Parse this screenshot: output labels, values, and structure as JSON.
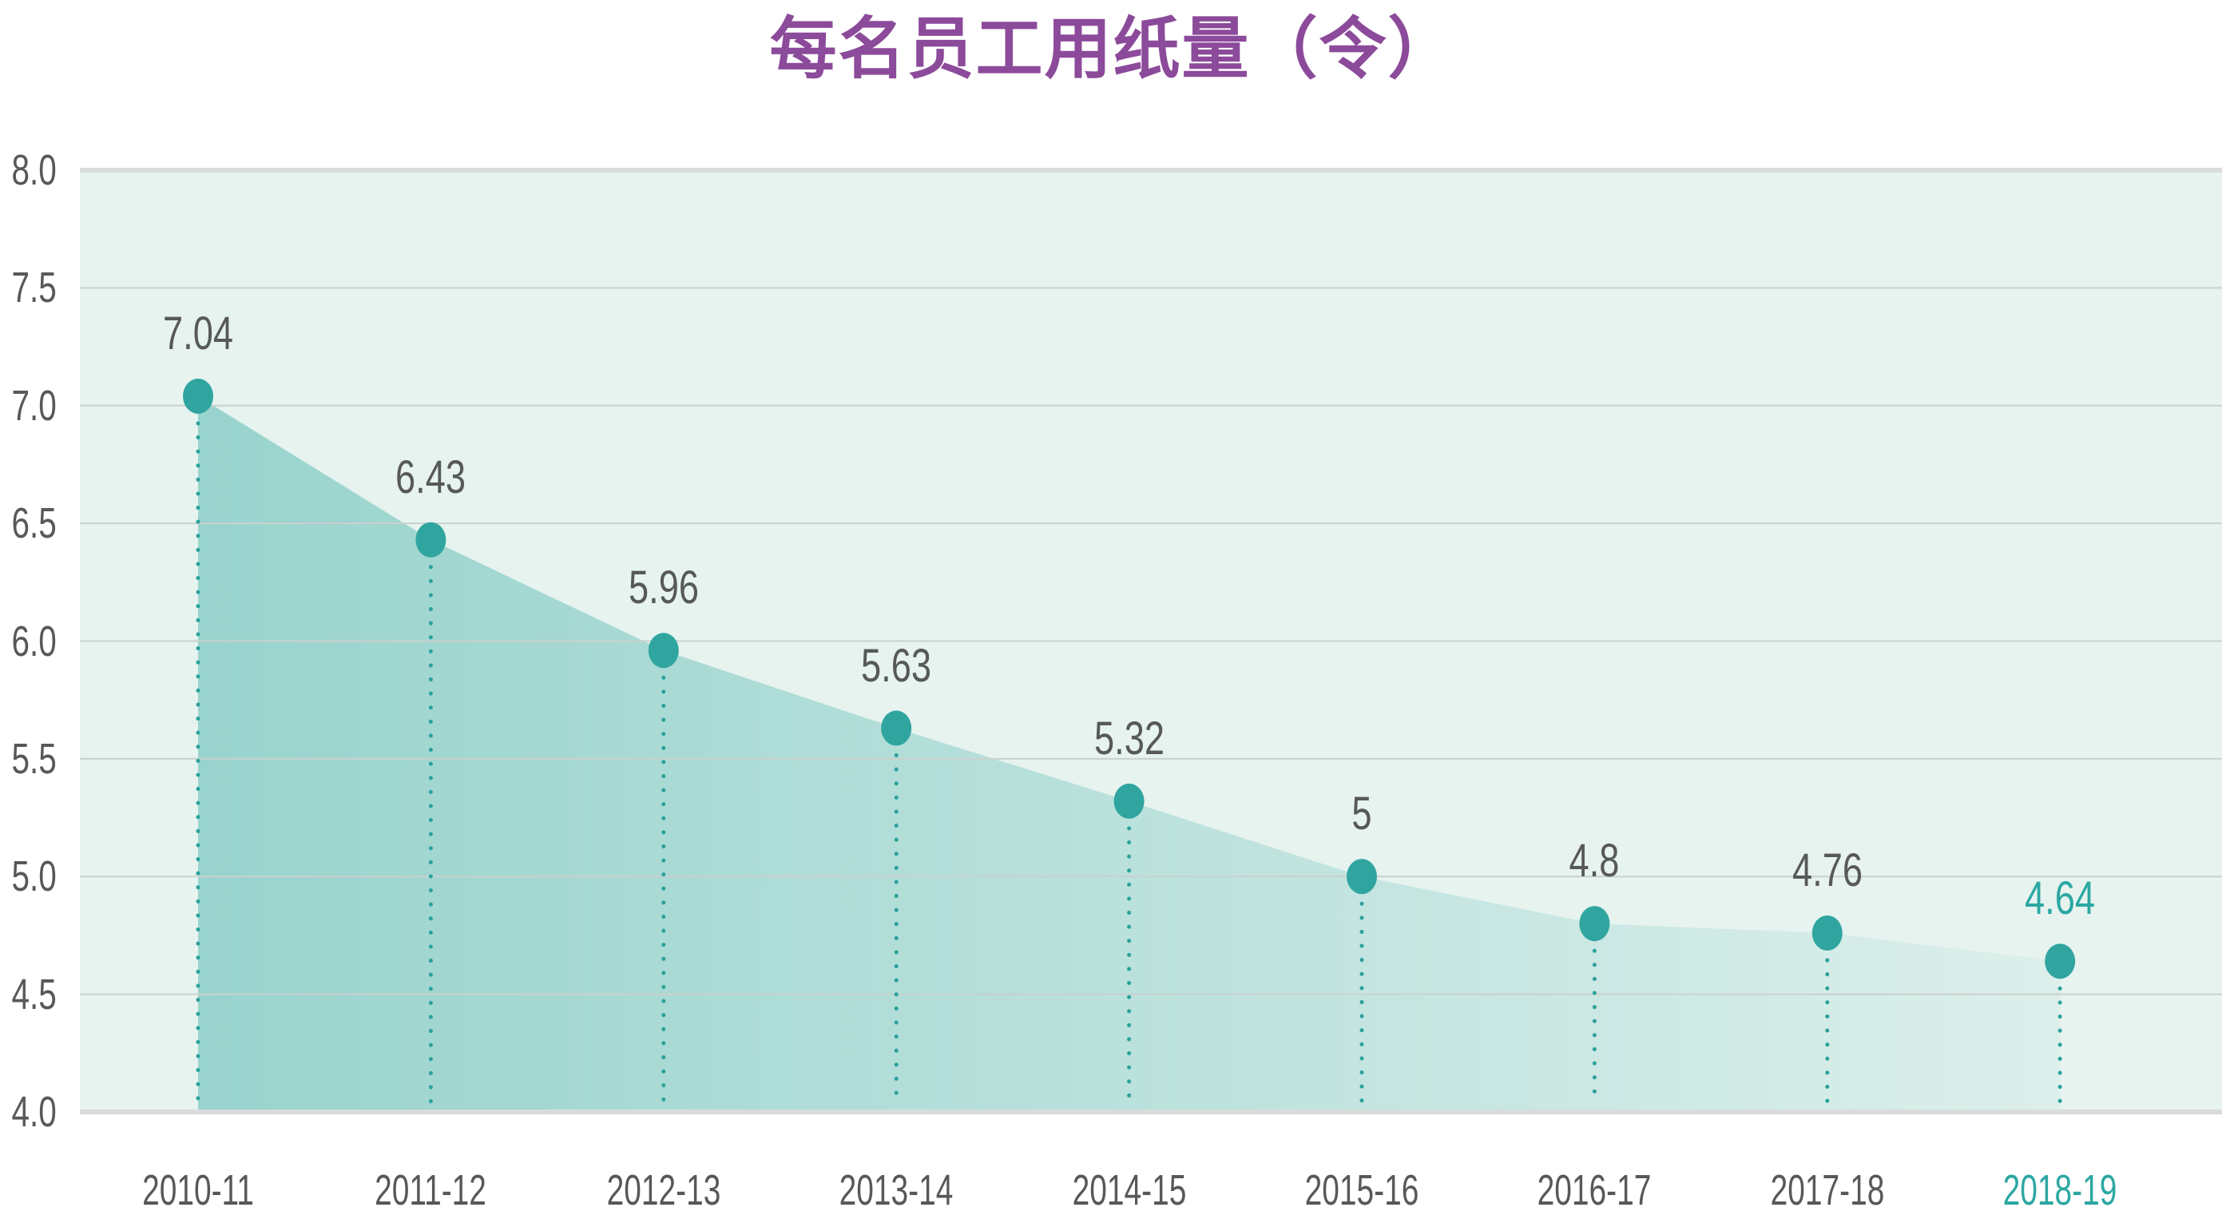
{
  "page": {
    "background": "#ffffff"
  },
  "chart_data": {
    "type": "area",
    "title": "每名员工用纸量（令）",
    "categories": [
      "2010-11",
      "2011-12",
      "2012-13",
      "2013-14",
      "2014-15",
      "2015-16",
      "2016-17",
      "2017-18",
      "2018-19"
    ],
    "values": [
      7.04,
      6.43,
      5.96,
      5.63,
      5.32,
      5,
      4.8,
      4.76,
      4.64
    ],
    "value_labels": [
      "7.04",
      "6.43",
      "5.96",
      "5.63",
      "5.32",
      "5",
      "4.8",
      "4.76",
      "4.64"
    ],
    "y_ticks": [
      "8.0",
      "7.5",
      "7.0",
      "6.5",
      "6.0",
      "5.5",
      "5.0",
      "4.5",
      "4.0"
    ],
    "ylim": [
      4.0,
      8.0
    ],
    "y_tick_step": 0.5,
    "grid": true,
    "legend": "none",
    "xlabel": "",
    "ylabel": "",
    "marker_style": "filled-ellipse",
    "drop_lines": "dotted",
    "highlight_last_index": 8,
    "colors": {
      "title_purple": "#8c4a9a",
      "label_gray": "#57585a",
      "accent_teal": "#2ca7a2",
      "marker_teal": "#30a5a0",
      "dot_teal": "#2ba19c",
      "area_base_rgb": "69,176,168",
      "area_alpha_start": 0.48,
      "area_alpha_end": 0.06,
      "plot_background": "#e6f3ef",
      "gridline": "#c9d1ce",
      "border_line": "#d9dcdc"
    }
  }
}
